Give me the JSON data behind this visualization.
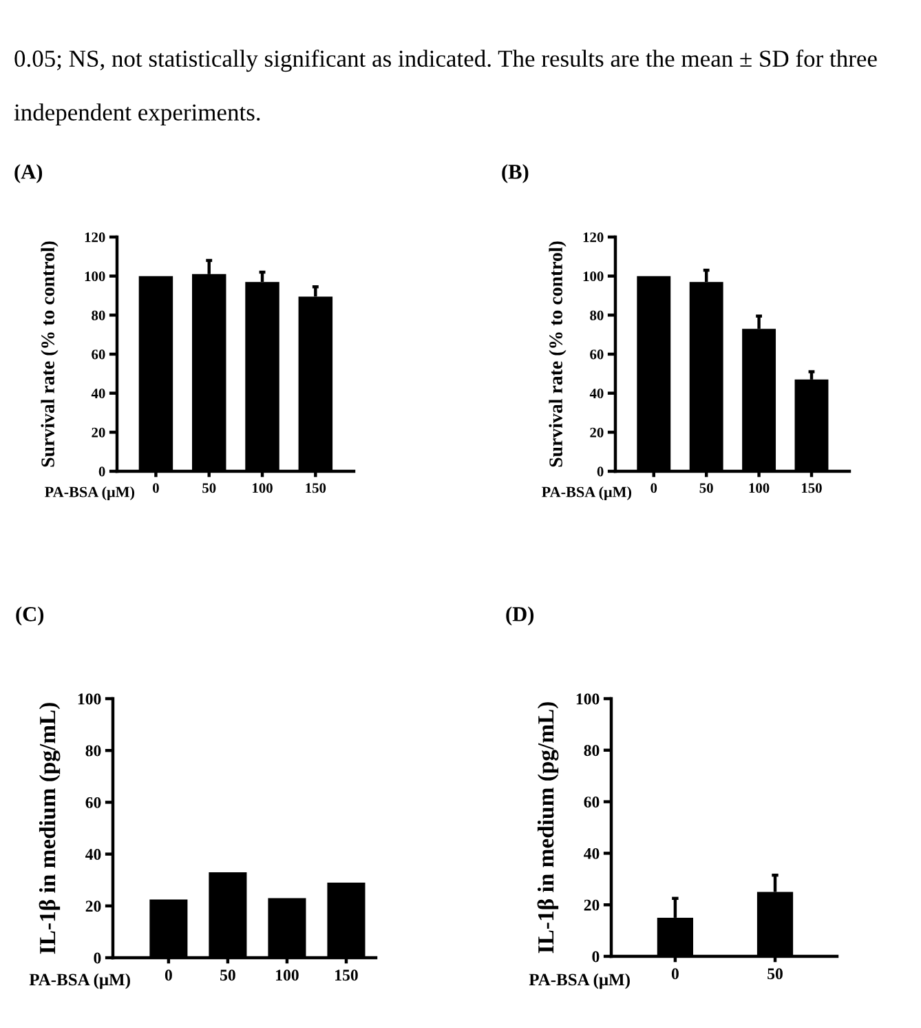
{
  "chart_data": [
    {
      "type": "bar",
      "title": "(A)",
      "xlabel": "PA-BSA (μM)",
      "ylabel": "Survival rate (% to control)",
      "categories": [
        "0",
        "50",
        "100",
        "150"
      ],
      "values": [
        100,
        101,
        97,
        89.5
      ],
      "color": "#000000",
      "errors": [
        null,
        [
          101,
          108
        ],
        [
          97,
          102
        ],
        [
          89.5,
          94.5
        ]
      ],
      "ylim": [
        0,
        120
      ],
      "yticks": [
        0,
        20,
        40,
        60,
        80,
        100,
        120
      ],
      "annotations": [
        "0.05; NS, not statistically significant as indicated. The results are the mean ± SD for three independent experiments."
      ]
    },
    {
      "type": "bar",
      "title": "(B)",
      "xlabel": "PA-BSA (μM)",
      "ylabel": "Survival rate (% to control)",
      "categories": [
        "0",
        "50",
        "100",
        "150"
      ],
      "values": [
        100,
        97,
        73,
        47
      ],
      "color": "#000000",
      "errors": [
        null,
        [
          97,
          103
        ],
        [
          73,
          79.5
        ],
        [
          47,
          51
        ]
      ],
      "ylim": [
        0,
        120
      ],
      "yticks": [
        0,
        20,
        40,
        60,
        80,
        100,
        120
      ]
    },
    {
      "type": "bar",
      "title": "(C)",
      "xlabel": "PA-BSA (μM)",
      "ylabel": "IL-1β in medium (pg/mL)",
      "categories": [
        "0",
        "50",
        "100",
        "150"
      ],
      "values": [
        22.5,
        33,
        23,
        29
      ],
      "color": "#000000",
      "ylim": [
        0,
        100
      ],
      "yticks": [
        0,
        20,
        40,
        60,
        80,
        100
      ]
    },
    {
      "type": "bar",
      "title": "(D)",
      "xlabel": "PA-BSA (μM)",
      "ylabel": "IL-1β in medium (pg/mL)",
      "categories": [
        "0",
        "50"
      ],
      "values": [
        15,
        25
      ],
      "color": "#000000",
      "errors": [
        [
          15,
          22.5
        ],
        [
          25,
          31.5
        ]
      ],
      "ylim": [
        0,
        100
      ],
      "yticks": [
        0,
        20,
        40,
        60,
        80,
        100
      ]
    }
  ]
}
